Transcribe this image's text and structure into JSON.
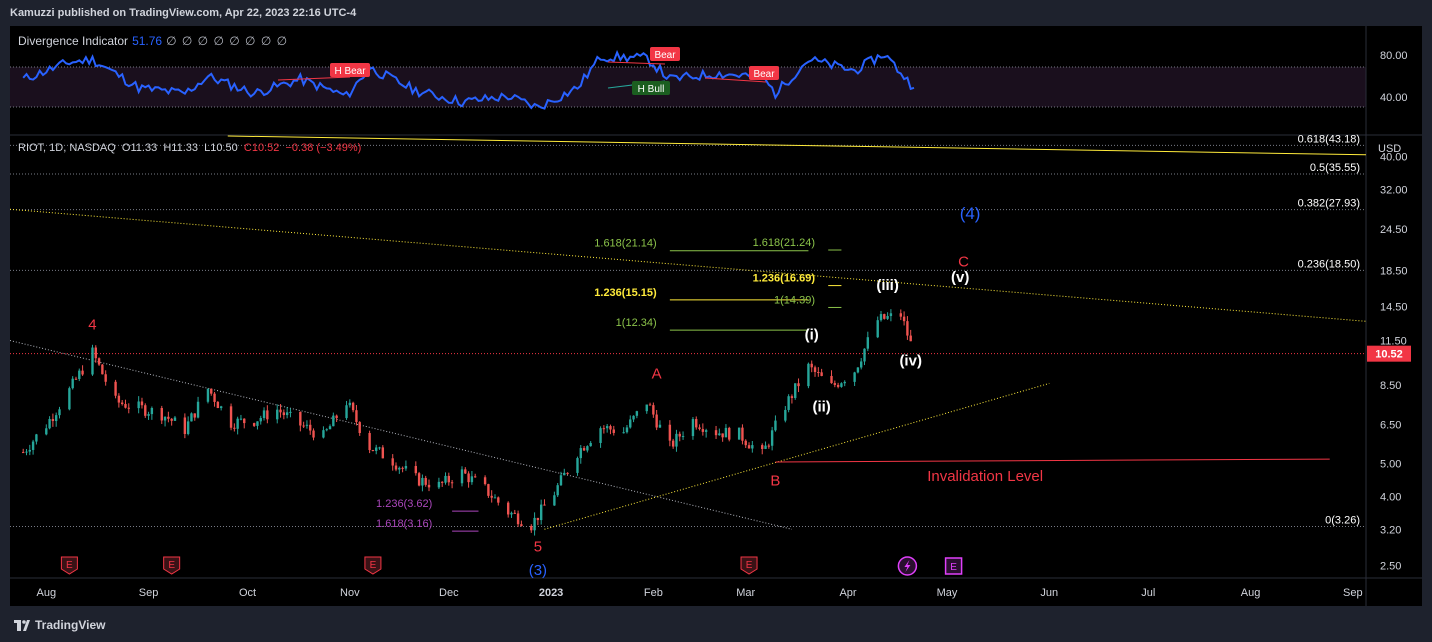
{
  "header": {
    "published_text": "Kamuzzi published on TradingView.com, Apr 22, 2023 22:16 UTC-4"
  },
  "indicator": {
    "name": "Divergence Indicator",
    "value": "51.76",
    "extra": "∅ ∅ ∅ ∅ ∅ ∅ ∅ ∅",
    "axis_labels": [
      "80.00",
      "40.00"
    ],
    "signals": [
      {
        "label": "H Bear",
        "kind": "bear"
      },
      {
        "label": "Bear",
        "kind": "bear"
      },
      {
        "label": "Bear",
        "kind": "bear"
      },
      {
        "label": "H Bull",
        "kind": "bull"
      }
    ]
  },
  "symbol": {
    "name": "RIOT, 1D, NASDAQ",
    "open": "O11.33",
    "high": "H11.33",
    "low": "L10.50",
    "close": "C10.52",
    "change": "−0.38 (−3.49%)",
    "currency": "USD",
    "last_price": "10.52"
  },
  "colors": {
    "background": "#000000",
    "frame": "#1e222d",
    "up": "#26a69a",
    "down": "#ef5350",
    "wave_red": "#f23645",
    "wave_blue": "#2962ff",
    "fib_green": "#8bc34a",
    "fib_yellow": "#ffeb3b",
    "indicator_line": "#2962ff",
    "earnings_red": "#f23645",
    "earnings_purple": "#e040fb"
  },
  "chart_data": {
    "type": "candlestick",
    "title": "RIOT, 1D, NASDAQ",
    "y_scale": "log",
    "ylim": [
      2.3,
      46
    ],
    "x_labels": [
      "Aug",
      "Sep",
      "Oct",
      "Nov",
      "Dec",
      "2023",
      "Feb",
      "Mar",
      "Apr",
      "May",
      "Jun",
      "Jul",
      "Aug",
      "Sep"
    ],
    "y_labels": [
      "40.00",
      "32.00",
      "24.50",
      "18.50",
      "14.50",
      "11.50",
      "8.50",
      "6.50",
      "5.00",
      "4.00",
      "3.20",
      "2.50"
    ],
    "close_series": [
      {
        "date": "2022-07-25",
        "close": 5.4
      },
      {
        "date": "2022-08-01",
        "close": 6.5
      },
      {
        "date": "2022-08-08",
        "close": 8.2
      },
      {
        "date": "2022-08-15",
        "close": 10.6
      },
      {
        "date": "2022-08-22",
        "close": 7.6
      },
      {
        "date": "2022-08-29",
        "close": 7.3
      },
      {
        "date": "2022-09-05",
        "close": 7.0
      },
      {
        "date": "2022-09-12",
        "close": 6.3
      },
      {
        "date": "2022-09-19",
        "close": 8.3
      },
      {
        "date": "2022-09-26",
        "close": 6.6
      },
      {
        "date": "2022-10-03",
        "close": 6.7
      },
      {
        "date": "2022-10-10",
        "close": 7.2
      },
      {
        "date": "2022-10-17",
        "close": 6.5
      },
      {
        "date": "2022-10-24",
        "close": 6.0
      },
      {
        "date": "2022-10-31",
        "close": 7.6
      },
      {
        "date": "2022-11-07",
        "close": 5.6
      },
      {
        "date": "2022-11-14",
        "close": 5.1
      },
      {
        "date": "2022-11-21",
        "close": 4.5
      },
      {
        "date": "2022-11-28",
        "close": 4.3
      },
      {
        "date": "2022-12-05",
        "close": 4.7
      },
      {
        "date": "2022-12-12",
        "close": 4.2
      },
      {
        "date": "2022-12-19",
        "close": 3.6
      },
      {
        "date": "2022-12-26",
        "close": 3.3
      },
      {
        "date": "2023-01-02",
        "close": 4.1
      },
      {
        "date": "2023-01-09",
        "close": 5.4
      },
      {
        "date": "2023-01-16",
        "close": 6.4
      },
      {
        "date": "2023-01-23",
        "close": 6.2
      },
      {
        "date": "2023-01-30",
        "close": 7.6
      },
      {
        "date": "2023-02-06",
        "close": 5.6
      },
      {
        "date": "2023-02-13",
        "close": 6.7
      },
      {
        "date": "2023-02-20",
        "close": 6.2
      },
      {
        "date": "2023-02-27",
        "close": 6.1
      },
      {
        "date": "2023-03-06",
        "close": 5.3
      },
      {
        "date": "2023-03-13",
        "close": 7.4
      },
      {
        "date": "2023-03-20",
        "close": 9.6
      },
      {
        "date": "2023-03-27",
        "close": 8.4
      },
      {
        "date": "2023-04-03",
        "close": 9.4
      },
      {
        "date": "2023-04-10",
        "close": 13.2
      },
      {
        "date": "2023-04-17",
        "close": 13.7
      },
      {
        "date": "2023-04-21",
        "close": 10.52
      }
    ],
    "fib_retracement": [
      {
        "label": "0.618(43.18)",
        "value": 43.18
      },
      {
        "label": "0.5(35.55)",
        "value": 35.55
      },
      {
        "label": "0.382(27.93)",
        "value": 27.93
      },
      {
        "label": "0.236(18.50)",
        "value": 18.5
      },
      {
        "label": "0(3.26)",
        "value": 3.26
      }
    ],
    "fib_extensions": [
      {
        "label": "1.618(21.14)",
        "value": 21.14,
        "color": "green"
      },
      {
        "label": "1.236(15.15)",
        "value": 15.15,
        "color": "yellow"
      },
      {
        "label": "1(12.34)",
        "value": 12.34,
        "color": "green"
      },
      {
        "label": "1.618(21.24)",
        "value": 21.24,
        "color": "green"
      },
      {
        "label": "1.236(16.69)",
        "value": 16.69,
        "color": "yellow"
      },
      {
        "label": "1(14.39)",
        "value": 14.39,
        "color": "green"
      },
      {
        "label": "1.236(3.62)",
        "value": 3.62,
        "color": "purple"
      },
      {
        "label": "1.618(3.16)",
        "value": 3.16,
        "color": "purple"
      }
    ],
    "wave_labels": [
      {
        "label": "4",
        "color": "red",
        "date": "2022-08-15",
        "price": 12.4
      },
      {
        "label": "5",
        "color": "red",
        "date": "2022-12-28",
        "price": 2.75
      },
      {
        "label": "(3)",
        "color": "blue",
        "date": "2022-12-28",
        "price": 2.35
      },
      {
        "label": "A",
        "color": "red",
        "date": "2023-02-02",
        "price": 8.9
      },
      {
        "label": "B",
        "color": "red",
        "date": "2023-03-10",
        "price": 4.3
      },
      {
        "label": "(i)",
        "color": "white",
        "date": "2023-03-21",
        "price": 11.6
      },
      {
        "label": "(ii)",
        "color": "white",
        "date": "2023-03-24",
        "price": 7.1
      },
      {
        "label": "(iii)",
        "color": "white",
        "date": "2023-04-13",
        "price": 16.2
      },
      {
        "label": "(iv)",
        "color": "white",
        "date": "2023-04-20",
        "price": 9.7
      },
      {
        "label": "(v)",
        "color": "white",
        "date": "2023-05-05",
        "price": 17.1
      },
      {
        "label": "C",
        "color": "red",
        "date": "2023-05-06",
        "price": 19.0
      },
      {
        "label": "(4)",
        "color": "blue",
        "date": "2023-05-08",
        "price": 26.2
      }
    ],
    "invalidation": {
      "label": "Invalidation Level",
      "value": 5.15
    },
    "earnings_markers": [
      {
        "date": "2022-08-08",
        "kind": "E"
      },
      {
        "date": "2022-09-08",
        "kind": "E"
      },
      {
        "date": "2022-11-08",
        "kind": "E"
      },
      {
        "date": "2023-03-02",
        "kind": "E"
      },
      {
        "date": "2023-04-19",
        "kind": "dividend"
      },
      {
        "date": "2023-05-03",
        "kind": "E-future"
      }
    ],
    "indicator_series": [
      {
        "date": "2022-07-25",
        "value": 58
      },
      {
        "date": "2022-08-08",
        "value": 70
      },
      {
        "date": "2022-08-15",
        "value": 72
      },
      {
        "date": "2022-08-29",
        "value": 52
      },
      {
        "date": "2022-09-12",
        "value": 48
      },
      {
        "date": "2022-09-19",
        "value": 60
      },
      {
        "date": "2022-10-03",
        "value": 48
      },
      {
        "date": "2022-10-17",
        "value": 58
      },
      {
        "date": "2022-10-31",
        "value": 46
      },
      {
        "date": "2022-11-07",
        "value": 66
      },
      {
        "date": "2022-11-21",
        "value": 50
      },
      {
        "date": "2022-12-05",
        "value": 42
      },
      {
        "date": "2022-12-19",
        "value": 46
      },
      {
        "date": "2022-12-28",
        "value": 38
      },
      {
        "date": "2023-01-09",
        "value": 52
      },
      {
        "date": "2023-01-16",
        "value": 74
      },
      {
        "date": "2023-01-30",
        "value": 73
      },
      {
        "date": "2023-02-06",
        "value": 58
      },
      {
        "date": "2023-02-20",
        "value": 62
      },
      {
        "date": "2023-03-06",
        "value": 60
      },
      {
        "date": "2023-03-10",
        "value": 48
      },
      {
        "date": "2023-03-20",
        "value": 72
      },
      {
        "date": "2023-04-03",
        "value": 64
      },
      {
        "date": "2023-04-12",
        "value": 76
      },
      {
        "date": "2023-04-21",
        "value": 52
      }
    ]
  },
  "footer": {
    "brand": "TradingView"
  }
}
